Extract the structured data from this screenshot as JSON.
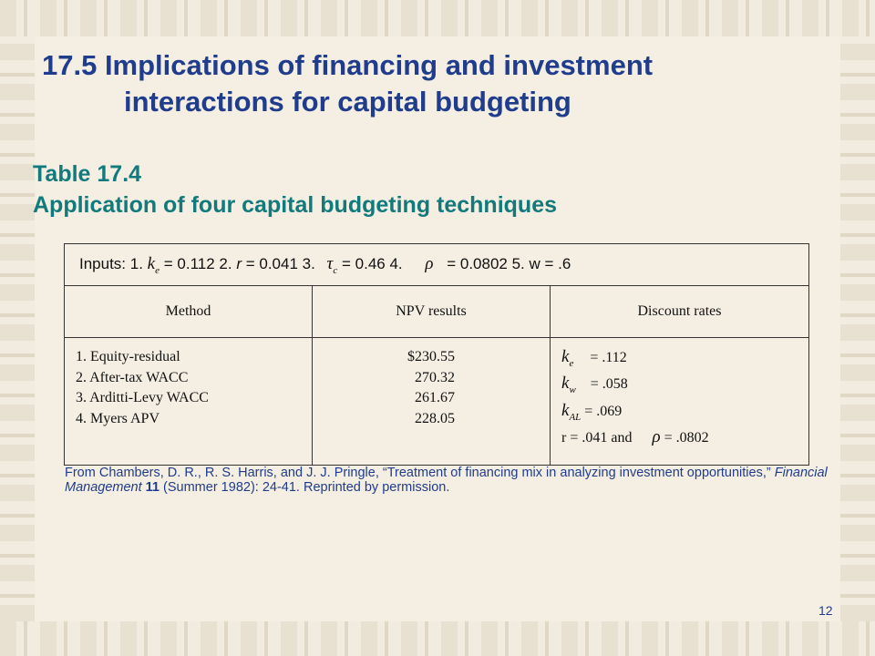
{
  "slide": {
    "title_line1": "17.5  Implications of financing and investment",
    "title_line2": "interactions for capital budgeting",
    "subtitle_line1": "Table 17.4",
    "subtitle_line2": "Application of four capital budgeting techniques",
    "page_number": "12"
  },
  "inputs": {
    "label": "Inputs: 1.",
    "ke_symbol": "k",
    "ke_sub": "e",
    "ke_value": "= 0.112  2.",
    "r_symbol": "r",
    "r_value": "= 0.041  3.",
    "tau_symbol": "τ",
    "tau_sub": "c",
    "tau_value": "= 0.46  4.",
    "rho_symbol": "ρ",
    "rho_value": "= 0.0802  5. w = .6"
  },
  "table": {
    "headers": [
      "Method",
      "NPV results",
      "Discount rates"
    ],
    "methods": [
      "1.  Equity-residual",
      "2. After-tax WACC",
      "3. Arditti-Levy WACC",
      "4. Myers APV"
    ],
    "npv": [
      "$230.55",
      "270.32",
      "261.67",
      "228.05"
    ],
    "rates": [
      {
        "symbol": "k",
        "sub": "e",
        "value": "= .112"
      },
      {
        "symbol": "k",
        "sub": "w",
        "value": "= .058"
      },
      {
        "symbol": "k",
        "sub": "AL",
        "value": "= .069"
      }
    ],
    "rate_last_prefix": "r = .041 and",
    "rate_last_rho": "ρ",
    "rate_last_value": "= .0802"
  },
  "citation": {
    "part1": "From Chambers, D. R., R. S. Harris, and J. J. Pringle, “Treatment of financing mix in analyzing investment opportunities,” ",
    "journal": "Financial Management",
    "volume": "11",
    "part2": " (Summer 1982): 24-41. Reprinted by permission."
  },
  "colors": {
    "title": "#1f3d8c",
    "subtitle": "#127a7c",
    "background": "#f1eadc"
  }
}
